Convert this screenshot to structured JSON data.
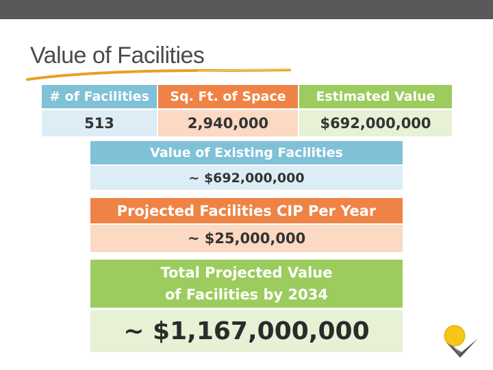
{
  "slide": {
    "title": "Value of Facilities"
  },
  "summary_table": {
    "headers": [
      "# of Facilities",
      "Sq. Ft. of Space",
      "Estimated Value"
    ],
    "values": [
      "513",
      "2,940,000",
      "$692,000,000"
    ]
  },
  "existing": {
    "label": "Value of Existing Facilities",
    "value": "~ $692,000,000"
  },
  "cip": {
    "label": "Projected Facilities CIP Per Year",
    "value": "~ $25,000,000"
  },
  "total": {
    "label_line1": "Total Projected Value",
    "label_line2": "of Facilities by 2034",
    "value": "~ $1,167,000,000"
  },
  "colors": {
    "blue": "#7fc1d6",
    "blue_light": "#dcedf5",
    "orange": "#ef8345",
    "orange_light": "#fbd9c2",
    "green": "#9ccc5e",
    "green_light": "#e6f1d6"
  },
  "icons": {
    "logo": "sun-bird-logo-icon"
  }
}
